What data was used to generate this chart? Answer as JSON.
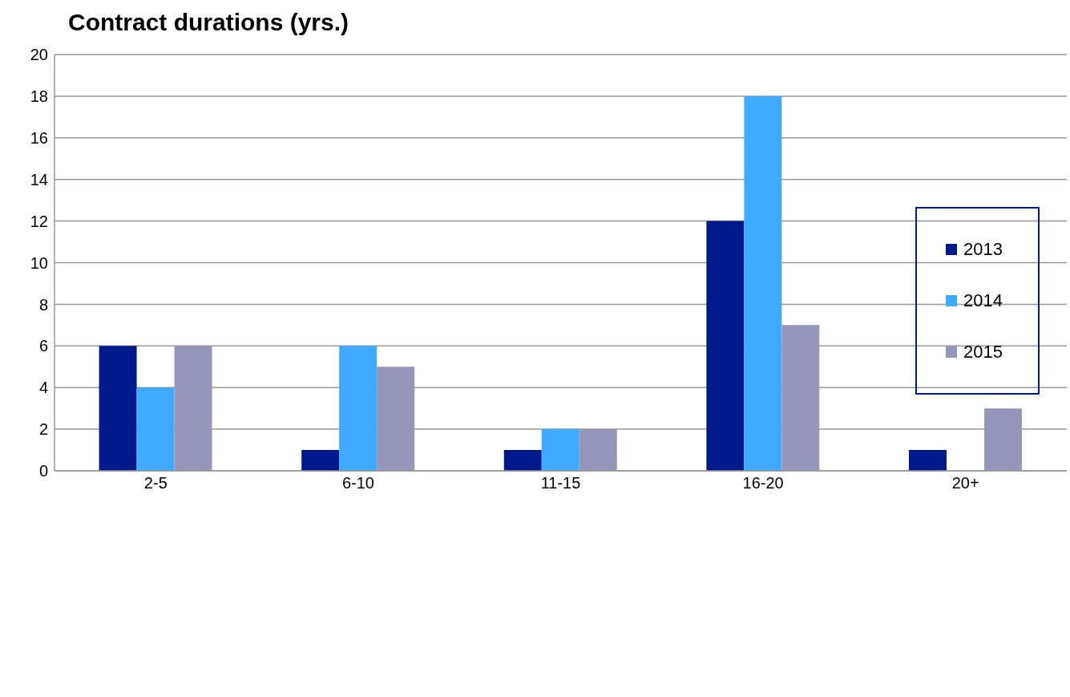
{
  "chart_data": {
    "type": "bar",
    "title": "Contract durations (yrs.)",
    "categories": [
      "2-5",
      "6-10",
      "11-15",
      "16-20",
      "20+"
    ],
    "series": [
      {
        "name": "2013",
        "color": "#001a8c",
        "values": [
          6,
          1,
          1,
          12,
          1
        ]
      },
      {
        "name": "2014",
        "color": "#3faaff",
        "values": [
          4,
          6,
          2,
          18,
          0
        ]
      },
      {
        "name": "2015",
        "color": "#9696bc",
        "values": [
          6,
          5,
          2,
          7,
          3
        ]
      }
    ],
    "ylim": [
      0,
      20
    ],
    "yticks": [
      0,
      2,
      4,
      6,
      8,
      10,
      12,
      14,
      16,
      18,
      20
    ],
    "grid": "y",
    "legend": "right"
  }
}
